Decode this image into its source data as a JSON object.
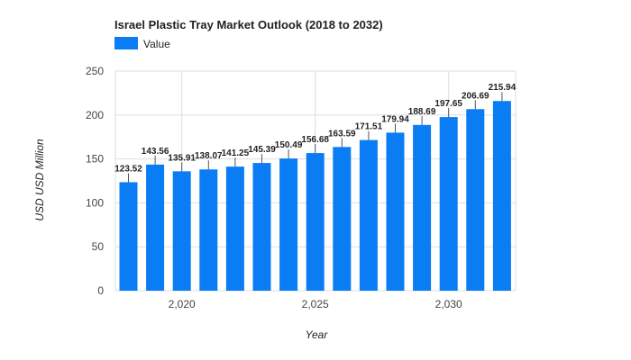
{
  "chart_data": {
    "type": "bar",
    "title": "Israel Plastic Tray Market Outlook (2018 to 2032)",
    "xlabel": "Year",
    "ylabel": "USD USD Million",
    "legend": {
      "position": "top-left",
      "entries": [
        "Value"
      ]
    },
    "x": [
      2018,
      2019,
      2020,
      2021,
      2022,
      2023,
      2024,
      2025,
      2026,
      2027,
      2028,
      2029,
      2030,
      2031,
      2032
    ],
    "series": [
      {
        "name": "Value",
        "color": "#0a7cf4",
        "values": [
          123.52,
          143.56,
          135.91,
          138.07,
          141.25,
          145.39,
          150.49,
          156.68,
          163.59,
          171.51,
          179.94,
          188.69,
          197.65,
          206.69,
          215.94
        ],
        "labels": [
          "123.52",
          "143.56",
          "135.91",
          "138.07",
          "141.25",
          "145.39",
          "150.49",
          "156.68",
          "163.59",
          "171.51",
          "179.94",
          "188.69",
          "197.65",
          "206.69",
          "215.94"
        ]
      }
    ],
    "ylim": [
      0,
      250
    ],
    "yticks": [
      0,
      50,
      100,
      150,
      200,
      250
    ],
    "xticks": [
      2020,
      2025,
      2030
    ],
    "xtick_labels": [
      "2,020",
      "2,025",
      "2,030"
    ],
    "grid": true
  }
}
